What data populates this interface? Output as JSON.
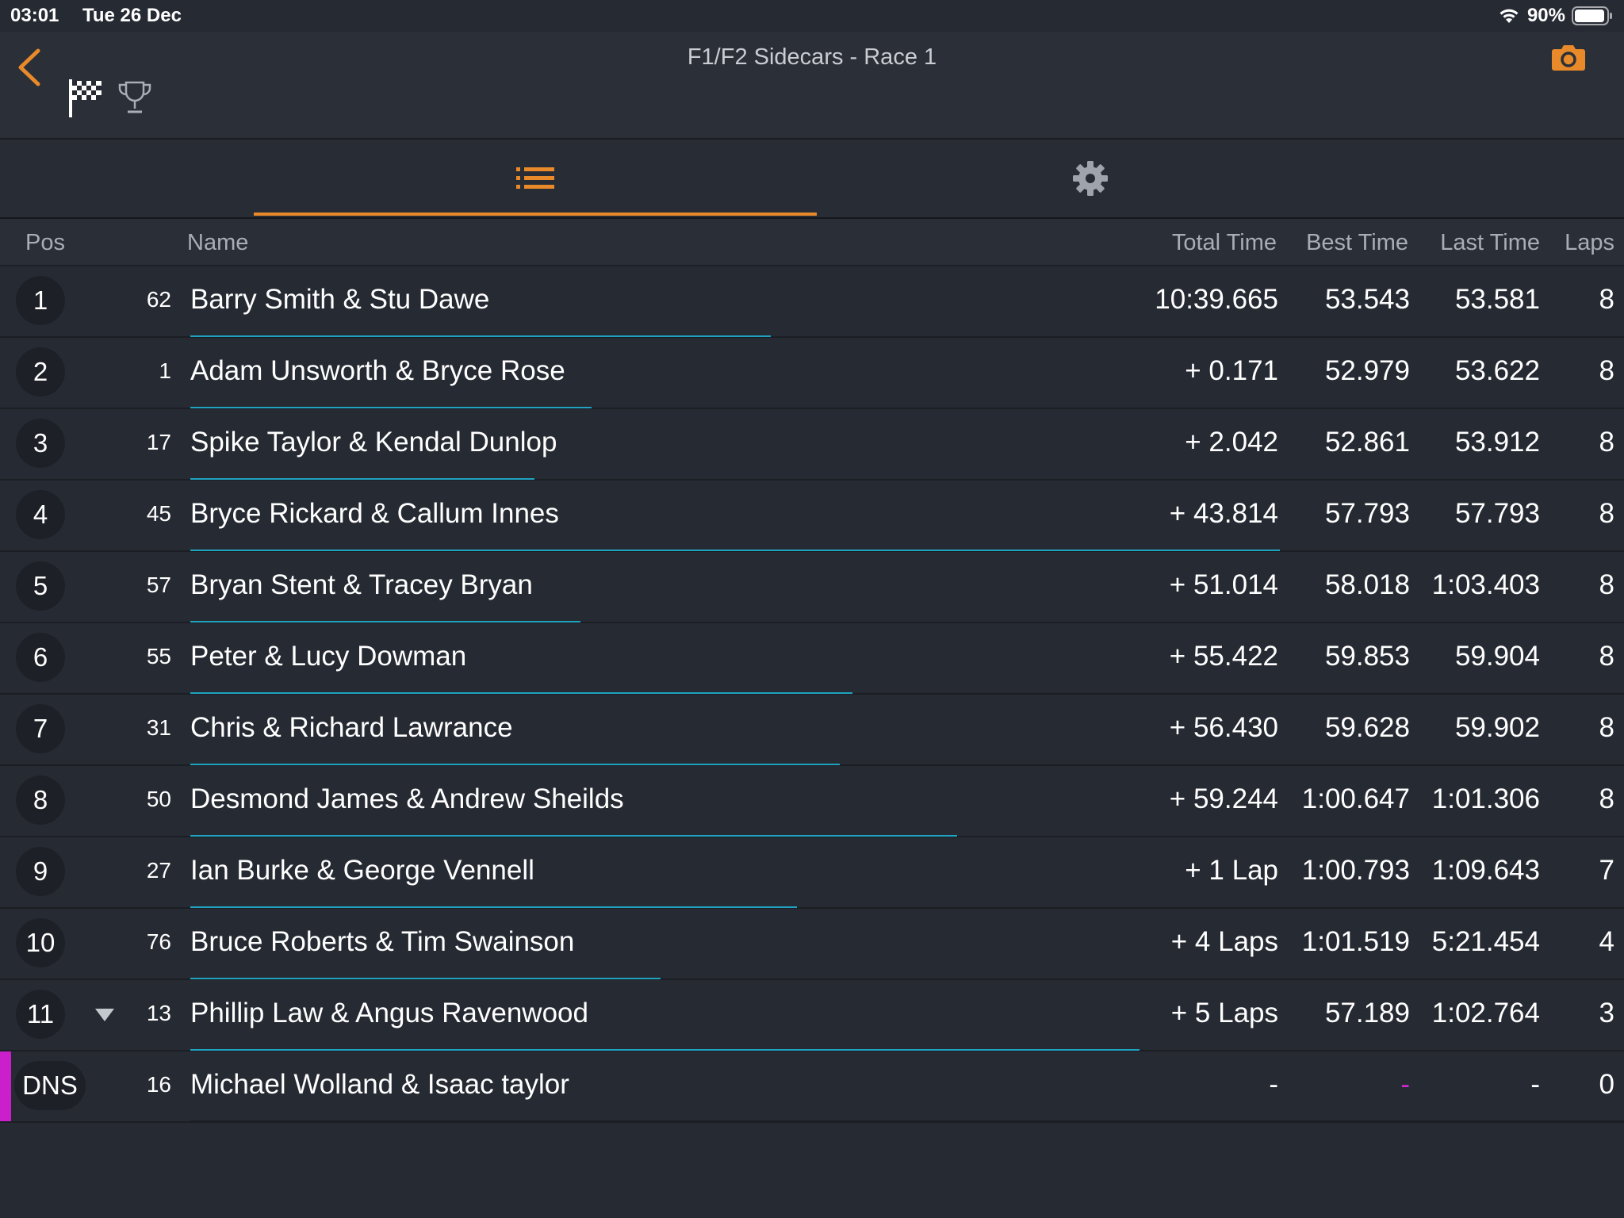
{
  "status": {
    "time": "03:01",
    "date": "Tue 26 Dec",
    "battery": "90%"
  },
  "header": {
    "title": "F1/F2 Sidecars - Race 1"
  },
  "colors": {
    "accent": "#e88a2a",
    "progress": "#1fa3c0",
    "dns": "#cc1fcc"
  },
  "columns": {
    "pos": "Pos",
    "name": "Name",
    "total": "Total Time",
    "best": "Best Time",
    "last": "Last Time",
    "laps": "Laps"
  },
  "rows": [
    {
      "pos": "1",
      "num": "62",
      "name": "Barry Smith & Stu Dawe",
      "total": "10:39.665",
      "best": "53.543",
      "last": "53.581",
      "laps": "8",
      "progress": 0.405
    },
    {
      "pos": "2",
      "num": "1",
      "name": "Adam Unsworth & Bryce Rose",
      "total": "+ 0.171",
      "best": "52.979",
      "last": "53.622",
      "laps": "8",
      "progress": 0.28
    },
    {
      "pos": "3",
      "num": "17",
      "name": "Spike Taylor & Kendal Dunlop",
      "total": "+ 2.042",
      "best": "52.861",
      "last": "53.912",
      "laps": "8",
      "progress": 0.24
    },
    {
      "pos": "4",
      "num": "45",
      "name": "Bryce Rickard & Callum Innes",
      "total": "+ 43.814",
      "best": "57.793",
      "last": "57.793",
      "laps": "8",
      "progress": 0.76
    },
    {
      "pos": "5",
      "num": "57",
      "name": "Bryan Stent & Tracey Bryan",
      "total": "+ 51.014",
      "best": "58.018",
      "last": "1:03.403",
      "laps": "8",
      "progress": 0.272
    },
    {
      "pos": "6",
      "num": "55",
      "name": "Peter & Lucy Dowman",
      "total": "+ 55.422",
      "best": "59.853",
      "last": "59.904",
      "laps": "8",
      "progress": 0.462
    },
    {
      "pos": "7",
      "num": "31",
      "name": "Chris & Richard Lawrance",
      "total": "+ 56.430",
      "best": "59.628",
      "last": "59.902",
      "laps": "8",
      "progress": 0.453
    },
    {
      "pos": "8",
      "num": "50",
      "name": "Desmond James & Andrew Sheilds",
      "total": "+ 59.244",
      "best": "1:00.647",
      "last": "1:01.306",
      "laps": "8",
      "progress": 0.535
    },
    {
      "pos": "9",
      "num": "27",
      "name": "Ian Burke & George Vennell",
      "total": "+ 1 Lap",
      "best": "1:00.793",
      "last": "1:09.643",
      "laps": "7",
      "progress": 0.423
    },
    {
      "pos": "10",
      "num": "76",
      "name": "Bruce Roberts & Tim Swainson",
      "total": "+ 4 Laps",
      "best": "1:01.519",
      "last": "5:21.454",
      "laps": "4",
      "progress": 0.328
    },
    {
      "pos": "11",
      "num": "13",
      "name": "Phillip Law & Angus Ravenwood",
      "total": "+ 5 Laps",
      "best": "57.189",
      "last": "1:02.764",
      "laps": "3",
      "progress": 0.662,
      "arrow": true
    },
    {
      "pos": "DNS",
      "num": "16",
      "name": "Michael Wolland & Isaac taylor",
      "total": "-",
      "best": "-",
      "last": "-",
      "laps": "0",
      "progress": 0,
      "dns": true
    }
  ]
}
